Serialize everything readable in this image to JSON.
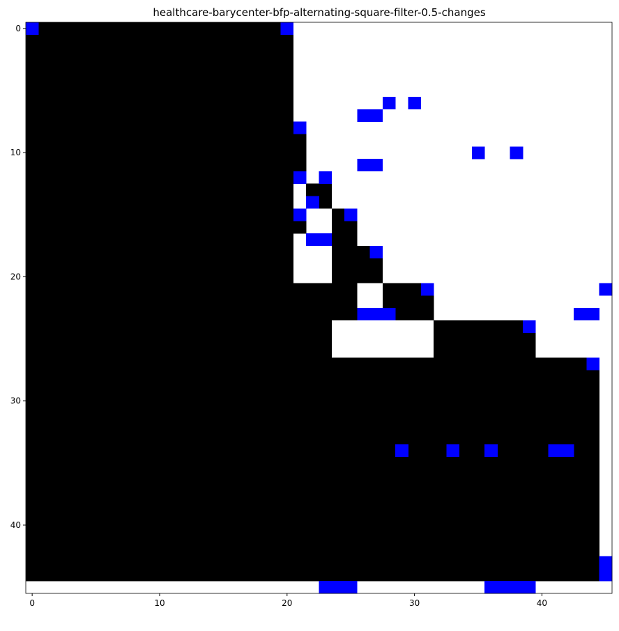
{
  "chart_data": {
    "type": "heatmap",
    "title": "healthcare-barycenter-bfp-alternating-square-filter-0.5-changes",
    "xlabel": "",
    "ylabel": "",
    "rows": 46,
    "cols": 46,
    "xlim": [
      -0.5,
      45.5
    ],
    "ylim": [
      45.5,
      -0.5
    ],
    "x_ticks": [
      0,
      10,
      20,
      30,
      40
    ],
    "y_ticks": [
      0,
      10,
      20,
      30,
      40
    ],
    "grid": false,
    "colors": {
      "black_cell": "#000000",
      "white_cell": "#ffffff",
      "change_cell": "#0000ff"
    },
    "black_runs": [
      [
        0,
        0,
        20
      ],
      [
        1,
        0,
        20
      ],
      [
        2,
        0,
        20
      ],
      [
        3,
        0,
        20
      ],
      [
        4,
        0,
        20
      ],
      [
        5,
        0,
        20
      ],
      [
        6,
        0,
        20
      ],
      [
        7,
        0,
        20
      ],
      [
        8,
        0,
        20
      ],
      [
        9,
        0,
        21
      ],
      [
        10,
        0,
        21
      ],
      [
        11,
        0,
        21
      ],
      [
        12,
        0,
        21
      ],
      [
        13,
        0,
        20
      ],
      [
        13,
        22,
        23
      ],
      [
        14,
        0,
        20
      ],
      [
        14,
        22,
        23
      ],
      [
        15,
        0,
        20
      ],
      [
        15,
        24,
        25
      ],
      [
        16,
        0,
        21
      ],
      [
        16,
        24,
        25
      ],
      [
        17,
        0,
        20
      ],
      [
        17,
        24,
        25
      ],
      [
        18,
        0,
        20
      ],
      [
        18,
        24,
        26
      ],
      [
        19,
        0,
        20
      ],
      [
        19,
        24,
        27
      ],
      [
        20,
        0,
        20
      ],
      [
        20,
        24,
        27
      ],
      [
        21,
        0,
        25
      ],
      [
        21,
        28,
        31
      ],
      [
        22,
        0,
        25
      ],
      [
        22,
        28,
        31
      ],
      [
        23,
        0,
        25
      ],
      [
        23,
        29,
        31
      ],
      [
        24,
        0,
        23
      ],
      [
        24,
        32,
        39
      ],
      [
        25,
        0,
        23
      ],
      [
        25,
        32,
        39
      ],
      [
        26,
        0,
        23
      ],
      [
        26,
        32,
        39
      ],
      [
        27,
        0,
        44
      ],
      [
        28,
        0,
        44
      ],
      [
        29,
        0,
        44
      ],
      [
        30,
        0,
        44
      ],
      [
        31,
        0,
        44
      ],
      [
        32,
        0,
        44
      ],
      [
        33,
        0,
        44
      ],
      [
        34,
        0,
        44
      ],
      [
        35,
        0,
        44
      ],
      [
        36,
        0,
        44
      ],
      [
        37,
        0,
        44
      ],
      [
        38,
        0,
        44
      ],
      [
        39,
        0,
        44
      ],
      [
        40,
        0,
        44
      ],
      [
        41,
        0,
        44
      ],
      [
        42,
        0,
        44
      ],
      [
        43,
        0,
        44
      ],
      [
        44,
        0,
        44
      ]
    ],
    "change_cells": [
      [
        0,
        0
      ],
      [
        0,
        20
      ],
      [
        6,
        28
      ],
      [
        6,
        30
      ],
      [
        7,
        26
      ],
      [
        7,
        27
      ],
      [
        8,
        21
      ],
      [
        10,
        35
      ],
      [
        10,
        38
      ],
      [
        11,
        26
      ],
      [
        11,
        27
      ],
      [
        12,
        21
      ],
      [
        12,
        23
      ],
      [
        14,
        22
      ],
      [
        15,
        21
      ],
      [
        15,
        25
      ],
      [
        17,
        22
      ],
      [
        17,
        23
      ],
      [
        18,
        27
      ],
      [
        21,
        31
      ],
      [
        21,
        45
      ],
      [
        23,
        26
      ],
      [
        23,
        27
      ],
      [
        23,
        28
      ],
      [
        23,
        43
      ],
      [
        23,
        44
      ],
      [
        24,
        39
      ],
      [
        27,
        44
      ],
      [
        34,
        29
      ],
      [
        34,
        33
      ],
      [
        34,
        36
      ],
      [
        34,
        41
      ],
      [
        34,
        42
      ],
      [
        43,
        45
      ],
      [
        44,
        45
      ],
      [
        45,
        23
      ],
      [
        45,
        24
      ],
      [
        45,
        25
      ],
      [
        45,
        36
      ],
      [
        45,
        37
      ],
      [
        45,
        38
      ],
      [
        45,
        39
      ]
    ]
  }
}
